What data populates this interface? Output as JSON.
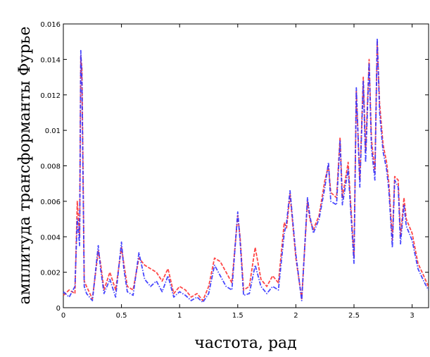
{
  "chart_data": {
    "type": "line",
    "title": "",
    "xlabel": "частота, рад",
    "ylabel": "амплитуда трансформанты Фурье",
    "xlim": [
      0,
      3.1416
    ],
    "ylim": [
      0,
      0.016
    ],
    "xticks": [
      0,
      0.5,
      1,
      1.5,
      2,
      2.5,
      3
    ],
    "xtick_labels": [
      "0",
      "0.5",
      "1",
      "1.5",
      "2",
      "2.5",
      "3"
    ],
    "yticks": [
      0,
      0.002,
      0.004,
      0.006,
      0.008,
      0.01,
      0.012,
      0.014,
      0.016
    ],
    "ytick_labels": [
      "0",
      "0.002",
      "0.004",
      "0.006",
      "0.008",
      "0.01",
      "0.012",
      "0.014",
      "0.016"
    ],
    "grid": false,
    "legend": false,
    "series": [
      {
        "color": "#ff3333",
        "style": "dashed",
        "x": [
          0,
          0.05,
          0.1,
          0.12,
          0.14,
          0.15,
          0.16,
          0.18,
          0.2,
          0.25,
          0.3,
          0.32,
          0.35,
          0.4,
          0.45,
          0.5,
          0.52,
          0.55,
          0.6,
          0.65,
          0.7,
          0.75,
          0.8,
          0.85,
          0.9,
          0.95,
          1.0,
          1.05,
          1.1,
          1.15,
          1.2,
          1.25,
          1.3,
          1.35,
          1.4,
          1.45,
          1.5,
          1.52,
          1.55,
          1.6,
          1.65,
          1.7,
          1.75,
          1.8,
          1.85,
          1.9,
          1.92,
          1.95,
          2.0,
          2.05,
          2.1,
          2.12,
          2.15,
          2.2,
          2.25,
          2.28,
          2.3,
          2.35,
          2.38,
          2.4,
          2.45,
          2.5,
          2.52,
          2.55,
          2.58,
          2.6,
          2.63,
          2.65,
          2.68,
          2.7,
          2.72,
          2.75,
          2.78,
          2.8,
          2.83,
          2.85,
          2.88,
          2.9,
          2.93,
          2.95,
          3.0,
          3.05,
          3.1,
          3.14
        ],
        "y": [
          0.0007,
          0.001,
          0.0008,
          0.006,
          0.004,
          0.0142,
          0.0135,
          0.0015,
          0.0012,
          0.0005,
          0.0032,
          0.0025,
          0.001,
          0.002,
          0.001,
          0.0034,
          0.0025,
          0.0012,
          0.001,
          0.0028,
          0.0024,
          0.0022,
          0.002,
          0.0015,
          0.0022,
          0.0008,
          0.0012,
          0.001,
          0.0006,
          0.0008,
          0.0004,
          0.0012,
          0.0028,
          0.0026,
          0.002,
          0.0014,
          0.0052,
          0.004,
          0.001,
          0.0012,
          0.0034,
          0.0016,
          0.0012,
          0.0018,
          0.0014,
          0.0048,
          0.0045,
          0.0064,
          0.0028,
          0.0005,
          0.006,
          0.005,
          0.0044,
          0.0052,
          0.0072,
          0.008,
          0.0065,
          0.0062,
          0.0096,
          0.0062,
          0.0082,
          0.0028,
          0.0122,
          0.0072,
          0.013,
          0.0088,
          0.014,
          0.0095,
          0.0076,
          0.015,
          0.0115,
          0.0092,
          0.0082,
          0.007,
          0.0038,
          0.0074,
          0.0072,
          0.004,
          0.0062,
          0.005,
          0.0042,
          0.0025,
          0.0018,
          0.0012
        ]
      },
      {
        "color": "#3333ff",
        "style": "dash-dot",
        "x": [
          0,
          0.05,
          0.1,
          0.12,
          0.14,
          0.15,
          0.16,
          0.18,
          0.2,
          0.25,
          0.3,
          0.32,
          0.35,
          0.4,
          0.45,
          0.5,
          0.52,
          0.55,
          0.6,
          0.65,
          0.7,
          0.75,
          0.8,
          0.85,
          0.9,
          0.95,
          1.0,
          1.05,
          1.1,
          1.15,
          1.2,
          1.25,
          1.3,
          1.35,
          1.4,
          1.45,
          1.5,
          1.52,
          1.55,
          1.6,
          1.65,
          1.7,
          1.75,
          1.8,
          1.85,
          1.9,
          1.92,
          1.95,
          2.0,
          2.05,
          2.1,
          2.12,
          2.15,
          2.2,
          2.25,
          2.28,
          2.3,
          2.35,
          2.38,
          2.4,
          2.45,
          2.5,
          2.52,
          2.55,
          2.58,
          2.6,
          2.63,
          2.65,
          2.68,
          2.7,
          2.72,
          2.75,
          2.78,
          2.8,
          2.83,
          2.85,
          2.88,
          2.9,
          2.93,
          2.95,
          3.0,
          3.05,
          3.1,
          3.14
        ],
        "y": [
          0.0009,
          0.0006,
          0.0012,
          0.005,
          0.0035,
          0.0145,
          0.0128,
          0.0012,
          0.0008,
          0.0004,
          0.0035,
          0.0022,
          0.0008,
          0.0016,
          0.0006,
          0.0037,
          0.0022,
          0.0009,
          0.0007,
          0.0031,
          0.0016,
          0.0012,
          0.0015,
          0.0009,
          0.0018,
          0.0006,
          0.0009,
          0.0007,
          0.0004,
          0.0006,
          0.0003,
          0.0008,
          0.0024,
          0.0018,
          0.0012,
          0.001,
          0.0054,
          0.0038,
          0.0007,
          0.0008,
          0.0024,
          0.0012,
          0.0008,
          0.0012,
          0.001,
          0.0042,
          0.0048,
          0.0066,
          0.003,
          0.0004,
          0.0062,
          0.0052,
          0.0042,
          0.005,
          0.0068,
          0.0082,
          0.006,
          0.0058,
          0.0094,
          0.0058,
          0.0078,
          0.0025,
          0.0124,
          0.0068,
          0.0128,
          0.0082,
          0.0138,
          0.009,
          0.0072,
          0.0152,
          0.011,
          0.0088,
          0.0078,
          0.0066,
          0.0034,
          0.0072,
          0.0068,
          0.0036,
          0.0058,
          0.0046,
          0.0038,
          0.0022,
          0.0015,
          0.001
        ]
      }
    ]
  }
}
